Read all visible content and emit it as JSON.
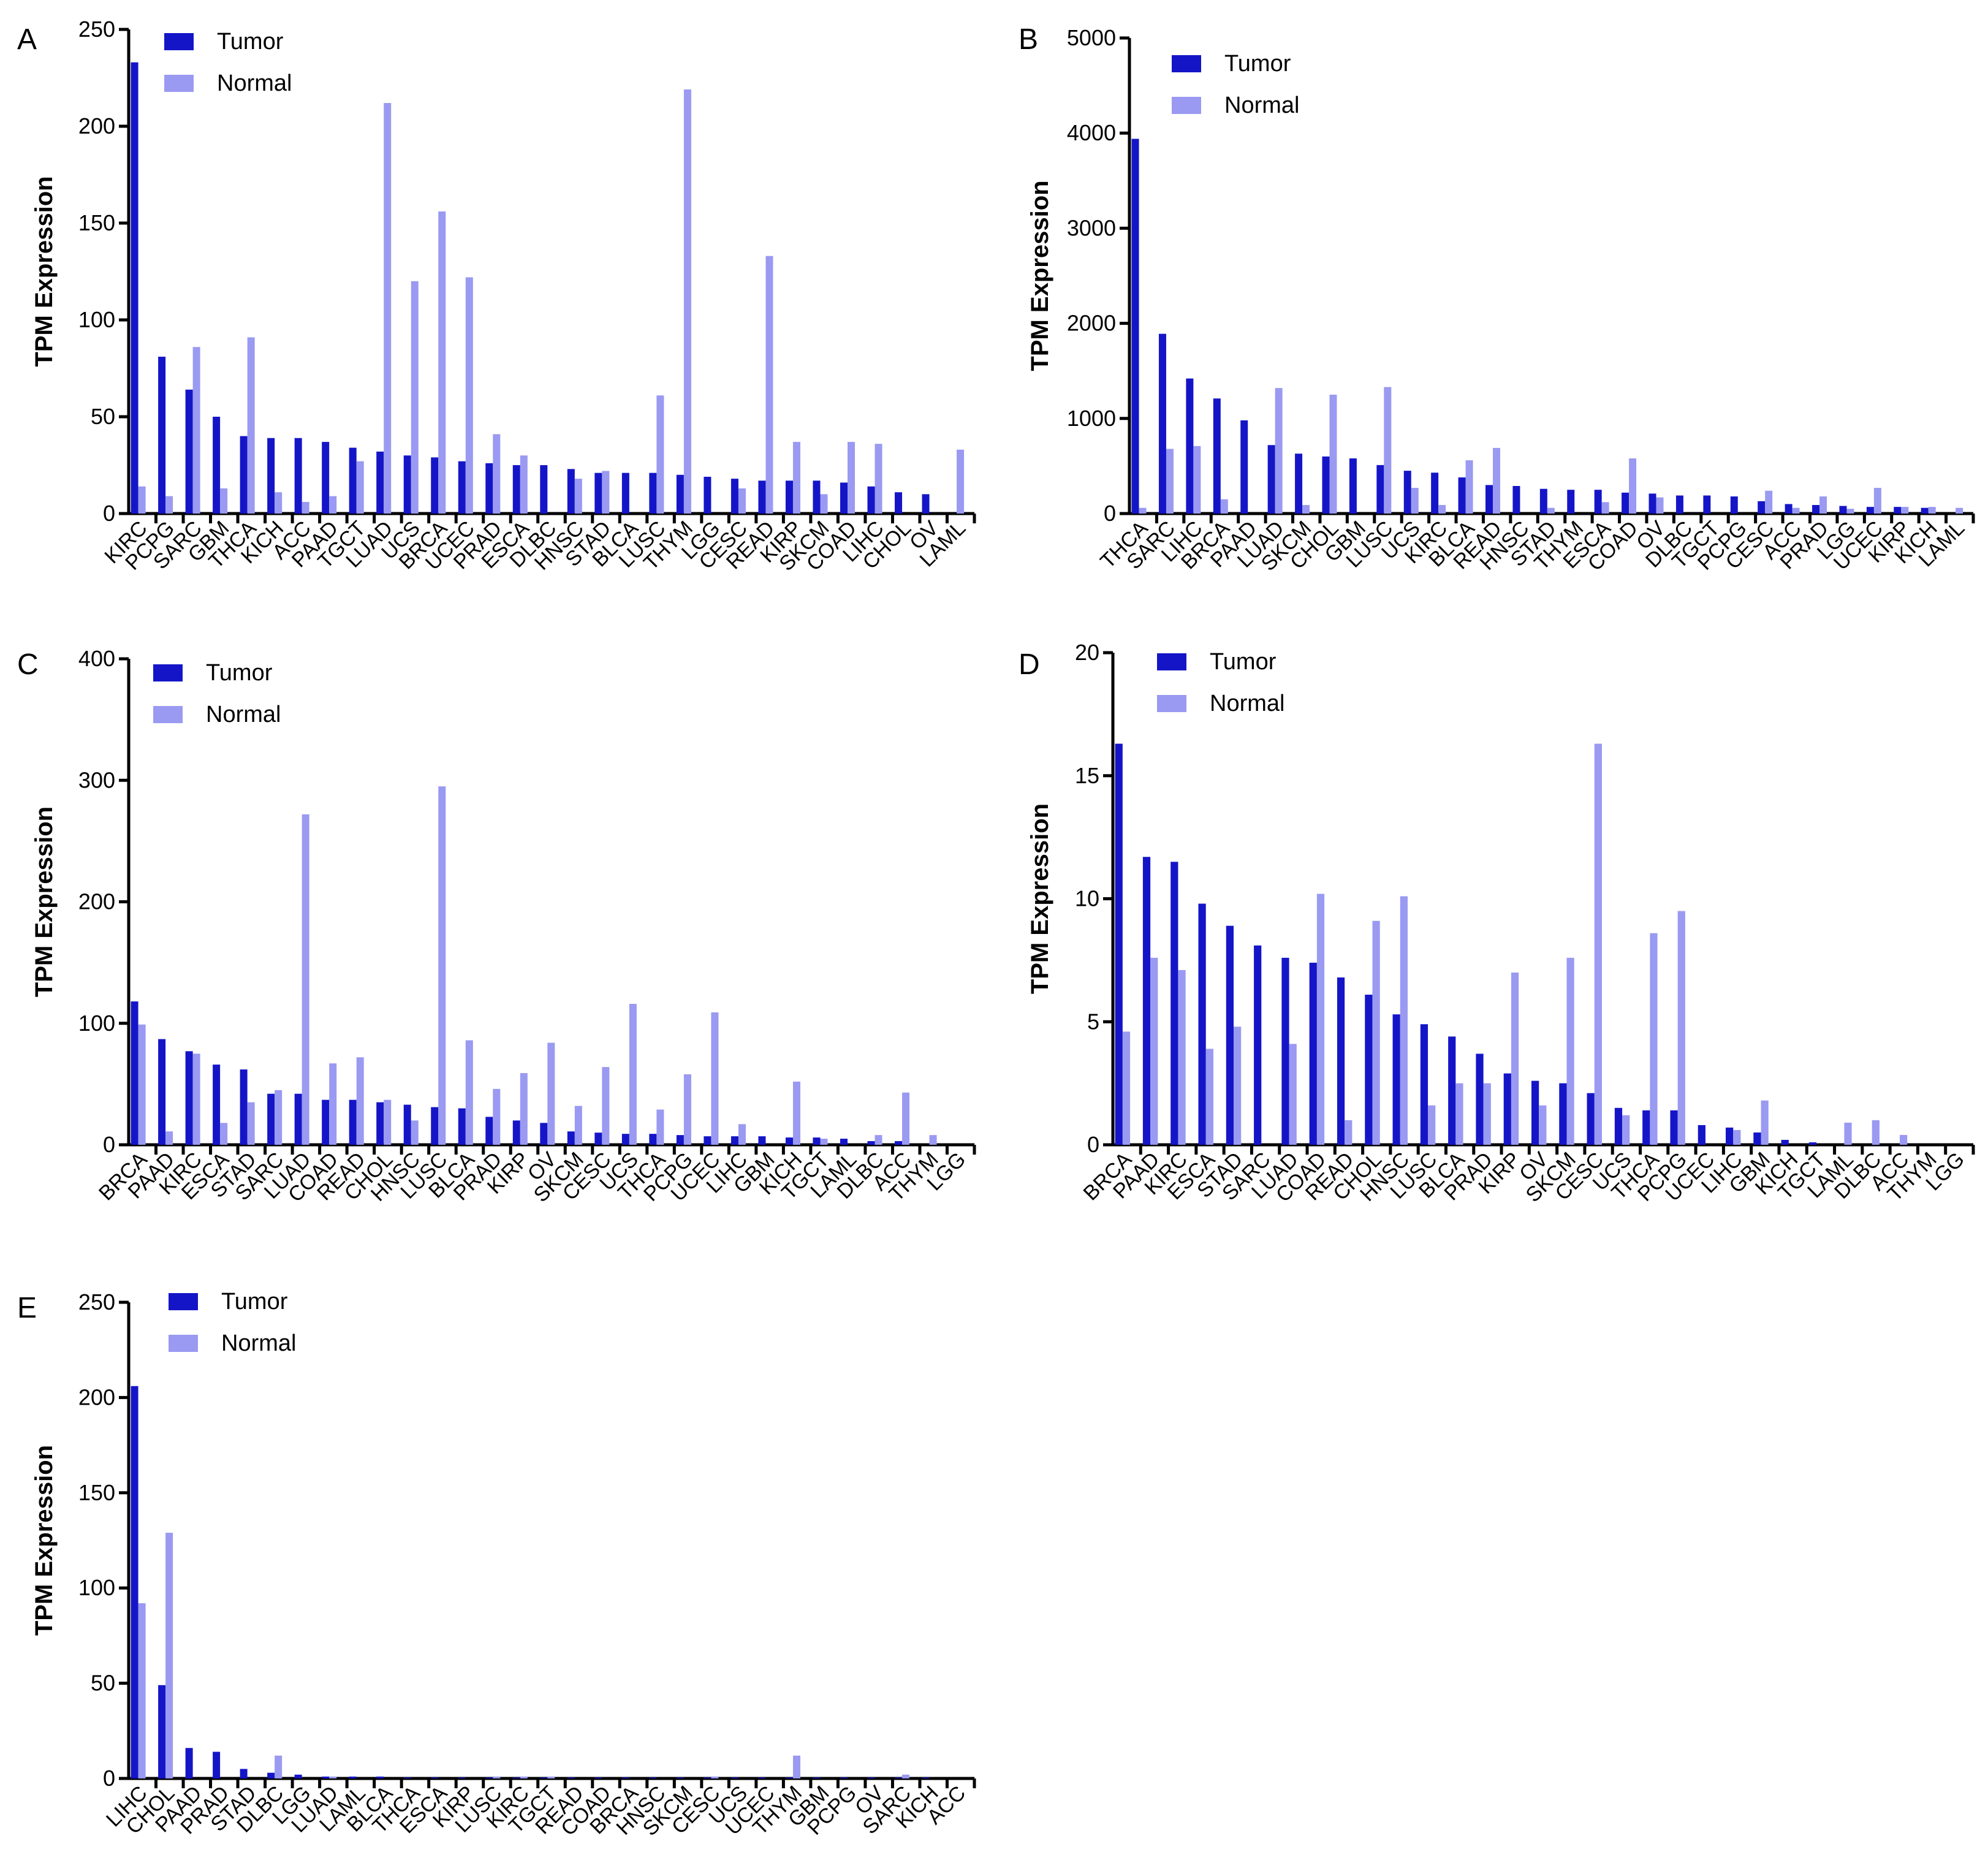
{
  "figure": {
    "colors": {
      "tumor": "#1515c8",
      "normal": "#9a9af2"
    }
  },
  "chart_data": [
    {
      "panel": "A",
      "type": "bar",
      "ylabel": "TPM Expression",
      "ylim": [
        0,
        250
      ],
      "yticks": [
        0,
        50,
        100,
        150,
        200,
        250
      ],
      "legend": [
        "Tumor",
        "Normal"
      ],
      "categories": [
        "KIRC",
        "PCPG",
        "SARC",
        "GBM",
        "THCA",
        "KICH",
        "ACC",
        "PAAD",
        "TGCT",
        "LUAD",
        "UCS",
        "BRCA",
        "UCEC",
        "PRAD",
        "ESCA",
        "DLBC",
        "HNSC",
        "STAD",
        "BLCA",
        "LUSC",
        "THYM",
        "LGG",
        "CESC",
        "READ",
        "KIRP",
        "SKCM",
        "COAD",
        "LIHC",
        "CHOL",
        "OV",
        "LAML"
      ],
      "series": [
        {
          "name": "Tumor",
          "values": [
            233,
            81,
            64,
            50,
            40,
            39,
            39,
            37,
            34,
            32,
            30,
            29,
            27,
            26,
            25,
            25,
            23,
            21,
            21,
            21,
            20,
            19,
            18,
            17,
            17,
            17,
            16,
            14,
            11,
            10,
            0
          ]
        },
        {
          "name": "Normal",
          "values": [
            14,
            9,
            86,
            13,
            91,
            11,
            6,
            9,
            27,
            212,
            120,
            156,
            122,
            41,
            30,
            0,
            18,
            22,
            0,
            61,
            219,
            0,
            13,
            133,
            37,
            10,
            37,
            36,
            0,
            0,
            33
          ]
        }
      ]
    },
    {
      "panel": "B",
      "type": "bar",
      "ylabel": "TPM Expression",
      "ylim": [
        0,
        5000
      ],
      "yticks": [
        0,
        1000,
        2000,
        3000,
        4000,
        5000
      ],
      "legend": [
        "Tumor",
        "Normal"
      ],
      "categories": [
        "THCA",
        "SARC",
        "LIHC",
        "BRCA",
        "PAAD",
        "LUAD",
        "SKCM",
        "CHOL",
        "GBM",
        "LUSC",
        "UCS",
        "KIRC",
        "BLCA",
        "READ",
        "HNSC",
        "STAD",
        "THYM",
        "ESCA",
        "COAD",
        "OV",
        "DLBC",
        "TGCT",
        "PCPG",
        "CESC",
        "ACC",
        "PRAD",
        "LGG",
        "UCEC",
        "KIRP",
        "KICH",
        "LAML"
      ],
      "series": [
        {
          "name": "Tumor",
          "values": [
            3940,
            1890,
            1420,
            1210,
            980,
            720,
            630,
            600,
            580,
            510,
            450,
            430,
            380,
            300,
            290,
            260,
            250,
            250,
            220,
            210,
            190,
            190,
            180,
            130,
            100,
            90,
            80,
            70,
            70,
            60,
            0
          ]
        },
        {
          "name": "Normal",
          "values": [
            60,
            680,
            710,
            150,
            0,
            1320,
            90,
            1250,
            0,
            1330,
            270,
            90,
            560,
            690,
            0,
            60,
            0,
            120,
            580,
            170,
            0,
            0,
            0,
            240,
            60,
            180,
            50,
            270,
            70,
            70,
            60
          ]
        }
      ]
    },
    {
      "panel": "C",
      "type": "bar",
      "ylabel": "TPM Expression",
      "ylim": [
        0,
        400
      ],
      "yticks": [
        0,
        100,
        200,
        300,
        400
      ],
      "legend": [
        "Tumor",
        "Normal"
      ],
      "categories": [
        "BRCA",
        "PAAD",
        "KIRC",
        "ESCA",
        "STAD",
        "SARC",
        "LUAD",
        "COAD",
        "READ",
        "CHOL",
        "HNSC",
        "LUSC",
        "BLCA",
        "PRAD",
        "KIRP",
        "OV",
        "SKCM",
        "CESC",
        "UCS",
        "THCA",
        "PCPG",
        "UCEC",
        "LIHC",
        "GBM",
        "KICH",
        "TGCT",
        "LAML",
        "DLBC",
        "ACC",
        "THYM",
        "LGG"
      ],
      "series": [
        {
          "name": "Tumor",
          "values": [
            118,
            87,
            77,
            66,
            62,
            42,
            42,
            37,
            37,
            35,
            33,
            31,
            30,
            23,
            20,
            18,
            11,
            10,
            9,
            9,
            8,
            7,
            7,
            7,
            6,
            6,
            5,
            3,
            3,
            0,
            0
          ]
        },
        {
          "name": "Normal",
          "values": [
            99,
            11,
            75,
            18,
            35,
            45,
            272,
            67,
            72,
            37,
            20,
            295,
            86,
            46,
            59,
            84,
            32,
            64,
            116,
            29,
            58,
            109,
            17,
            0,
            52,
            5,
            0,
            8,
            43,
            8,
            0
          ]
        }
      ]
    },
    {
      "panel": "D",
      "type": "bar",
      "ylabel": "TPM Expression",
      "ylim": [
        0,
        20
      ],
      "yticks": [
        0,
        5,
        10,
        15,
        20
      ],
      "legend": [
        "Tumor",
        "Normal"
      ],
      "categories": [
        "BRCA",
        "PAAD",
        "KIRC",
        "ESCA",
        "STAD",
        "SARC",
        "LUAD",
        "COAD",
        "READ",
        "CHOL",
        "HNSC",
        "LUSC",
        "BLCA",
        "PRAD",
        "KIRP",
        "OV",
        "SKCM",
        "CESC",
        "UCS",
        "THCA",
        "PCPG",
        "UCEC",
        "LIHC",
        "GBM",
        "KICH",
        "TGCT",
        "LAML",
        "DLBC",
        "ACC",
        "THYM",
        "LGG"
      ],
      "series": [
        {
          "name": "Tumor",
          "values": [
            16.3,
            11.7,
            11.5,
            9.8,
            8.9,
            8.1,
            7.6,
            7.4,
            6.8,
            6.1,
            5.3,
            4.9,
            4.4,
            3.7,
            2.9,
            2.6,
            2.5,
            2.1,
            1.5,
            1.4,
            1.4,
            0.8,
            0.7,
            0.5,
            0.2,
            0.1,
            0,
            0,
            0,
            0,
            0
          ]
        },
        {
          "name": "Normal",
          "values": [
            4.6,
            7.6,
            7.1,
            3.9,
            4.8,
            0,
            4.1,
            10.2,
            1.0,
            9.1,
            10.1,
            1.6,
            2.5,
            2.5,
            7.0,
            1.6,
            7.6,
            16.3,
            1.2,
            8.6,
            9.5,
            0,
            0.6,
            1.8,
            0,
            0,
            0.9,
            1.0,
            0.4,
            0,
            0
          ]
        }
      ]
    },
    {
      "panel": "E",
      "type": "bar",
      "ylabel": "TPM Expression",
      "ylim": [
        0,
        250
      ],
      "yticks": [
        0,
        50,
        100,
        150,
        200,
        250
      ],
      "legend": [
        "Tumor",
        "Normal"
      ],
      "categories": [
        "LIHC",
        "CHOL",
        "PAAD",
        "PRAD",
        "STAD",
        "DLBC",
        "LGG",
        "LUAD",
        "LAML",
        "BLCA",
        "THCA",
        "ESCA",
        "KIRP",
        "LUSC",
        "KIRC",
        "TGCT",
        "READ",
        "COAD",
        "BRCA",
        "HNSC",
        "SKCM",
        "CESC",
        "UCS",
        "UCEC",
        "THYM",
        "GBM",
        "PCPG",
        "OV",
        "SARC",
        "KICH",
        "ACC"
      ],
      "series": [
        {
          "name": "Tumor",
          "values": [
            206,
            49,
            16,
            14,
            5,
            3,
            2,
            1,
            1,
            1,
            0.5,
            0.5,
            0.5,
            0.5,
            0.5,
            0.5,
            0.5,
            0.5,
            0.5,
            0.5,
            0.5,
            0.5,
            0.5,
            0.5,
            0.5,
            0.5,
            0.5,
            0.5,
            0.5,
            0.5,
            0
          ]
        },
        {
          "name": "Normal",
          "values": [
            92,
            129,
            0,
            0,
            0,
            12,
            0,
            1,
            0,
            0,
            0,
            0,
            0,
            1,
            1,
            1,
            0,
            0,
            0,
            0,
            0,
            1,
            0,
            0,
            12,
            0,
            0,
            0,
            2,
            0,
            0
          ]
        }
      ]
    }
  ]
}
